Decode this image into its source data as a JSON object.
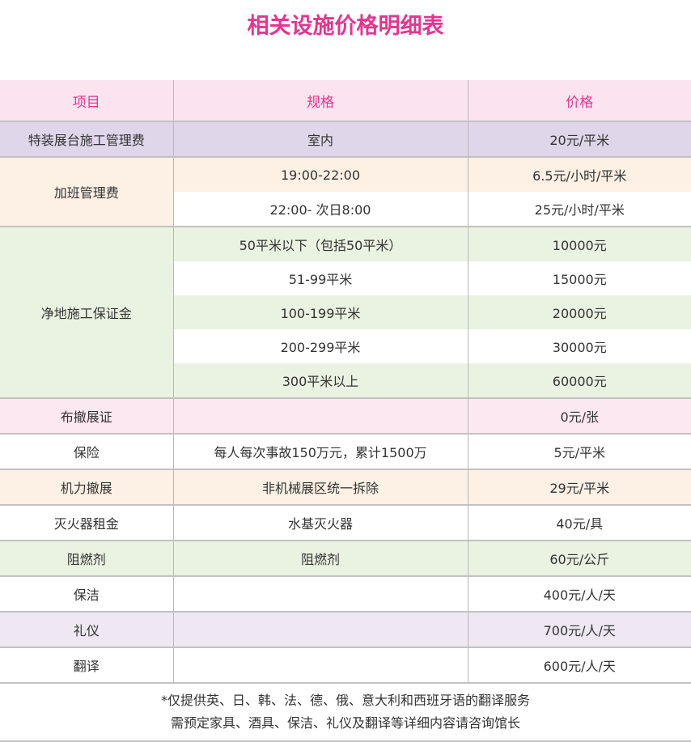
{
  "title": "相关设施价格明细表",
  "headers": {
    "item": "项目",
    "spec": "规格",
    "price": "价格"
  },
  "rows": {
    "r1": {
      "item": "特装展台施工管理费",
      "spec": "室内",
      "price": "20元/平米"
    },
    "r2": {
      "item": "加班管理费",
      "subs": [
        {
          "spec": "19:00-22:00",
          "price": "6.5元/小时/平米"
        },
        {
          "spec": "22:00- 次日8:00",
          "price": "25元/小时/平米"
        }
      ]
    },
    "r3": {
      "item": "净地施工保证金",
      "subs": [
        {
          "spec": "50平米以下（包括50平米）",
          "price": "10000元"
        },
        {
          "spec": "51-99平米",
          "price": "15000元"
        },
        {
          "spec": "100-199平米",
          "price": "20000元"
        },
        {
          "spec": "200-299平米",
          "price": "30000元"
        },
        {
          "spec": "300平米以上",
          "price": "60000元"
        }
      ]
    },
    "r4": {
      "item": "布撤展证",
      "spec": "",
      "price": "0元/张"
    },
    "r5": {
      "item": "保险",
      "spec": "每人每次事故150万元，累计1500万",
      "price": "5元/平米"
    },
    "r6": {
      "item": "机力撤展",
      "spec": "非机械展区统一拆除",
      "price": "29元/平米"
    },
    "r7": {
      "item": "灭火器租金",
      "spec": "水基灭火器",
      "price": "40元/具"
    },
    "r8": {
      "item": "阻燃剂",
      "spec": "阻燃剂",
      "price": "60元/公斤"
    },
    "r9": {
      "item": "保洁",
      "spec": "",
      "price": "400元/人/天"
    },
    "r10": {
      "item": "礼仪",
      "spec": "",
      "price": "700元/人/天"
    },
    "r11": {
      "item": "翻译",
      "spec": "",
      "price": "600元/人/天"
    }
  },
  "footnote": {
    "line1": "*仅提供英、日、韩、法、德、俄、意大利和西班牙语的翻译服务",
    "line2": "需预定家具、酒具、保洁、礼仪及翻译等详细内容请咨询馆长"
  },
  "colors": {
    "accent": "#e4358f",
    "header_bg": "#fbe4ef",
    "purple": "#e0d6ea",
    "peach": "#fdf0e4",
    "green": "#eaf2e1"
  }
}
